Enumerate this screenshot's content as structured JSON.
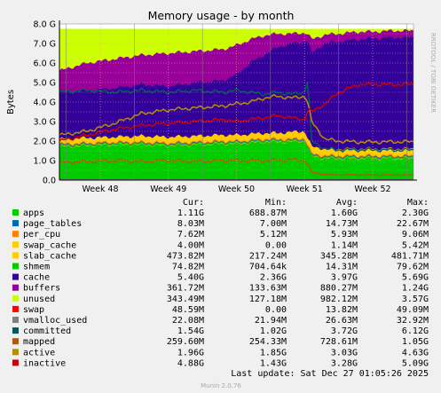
{
  "chart_data": {
    "type": "area",
    "title": "Memory usage - by month",
    "ylabel": "Bytes",
    "side_label": "RRDTOOL / TOBI OETIKER",
    "ylim": [
      0,
      8.0
    ],
    "y_ticks": [
      "0.0",
      "1.0 G",
      "2.0 G",
      "3.0 G",
      "4.0 G",
      "5.0 G",
      "6.0 G",
      "7.0 G",
      "8.0 G"
    ],
    "x_ticks": [
      "Week 48",
      "Week 49",
      "Week 50",
      "Week 51",
      "Week 52"
    ],
    "grid": true,
    "legend_position": "bottom",
    "columns": [
      "Cur:",
      "Min:",
      "Avg:",
      "Max:"
    ],
    "series": [
      {
        "name": "apps",
        "color": "#00cc00",
        "cur": "1.11G",
        "min": "688.87M",
        "avg": "1.60G",
        "max": "2.30G"
      },
      {
        "name": "page_tables",
        "color": "#0066b3",
        "cur": "8.03M",
        "min": "7.00M",
        "avg": "14.73M",
        "max": "22.67M"
      },
      {
        "name": "per_cpu",
        "color": "#ff8000",
        "cur": "7.62M",
        "min": "5.12M",
        "avg": "5.93M",
        "max": "9.06M"
      },
      {
        "name": "swap_cache",
        "color": "#ffcc00",
        "cur": "4.00M",
        "min": "0.00",
        "avg": "1.14M",
        "max": "5.42M"
      },
      {
        "name": "slab_cache",
        "color": "#ffcc00",
        "cur": "473.82M",
        "min": "217.24M",
        "avg": "345.28M",
        "max": "481.71M"
      },
      {
        "name": "shmem",
        "color": "#00cc00",
        "cur": "74.82M",
        "min": "704.64k",
        "avg": "14.31M",
        "max": "79.62M"
      },
      {
        "name": "cache",
        "color": "#330099",
        "cur": "5.40G",
        "min": "2.36G",
        "avg": "3.97G",
        "max": "5.69G"
      },
      {
        "name": "buffers",
        "color": "#990099",
        "cur": "361.72M",
        "min": "133.63M",
        "avg": "880.27M",
        "max": "1.24G"
      },
      {
        "name": "unused",
        "color": "#ccff00",
        "cur": "343.49M",
        "min": "127.18M",
        "avg": "982.12M",
        "max": "3.57G"
      },
      {
        "name": "swap",
        "color": "#ff0000",
        "cur": "48.59M",
        "min": "0.00",
        "avg": "13.82M",
        "max": "49.09M"
      },
      {
        "name": "vmalloc_used",
        "color": "#808080",
        "cur": "22.08M",
        "min": "21.94M",
        "avg": "26.63M",
        "max": "32.92M"
      },
      {
        "name": "committed",
        "color": "#005a5a",
        "cur": "1.54G",
        "min": "1.02G",
        "avg": "3.72G",
        "max": "6.12G"
      },
      {
        "name": "mapped",
        "color": "#b35a00",
        "cur": "259.60M",
        "min": "254.33M",
        "avg": "728.61M",
        "max": "1.05G"
      },
      {
        "name": "active",
        "color": "#b38f00",
        "cur": "1.96G",
        "min": "1.85G",
        "avg": "3.03G",
        "max": "4.63G"
      },
      {
        "name": "inactive",
        "color": "#cc0000",
        "cur": "4.88G",
        "min": "1.43G",
        "avg": "3.28G",
        "max": "5.09G"
      }
    ],
    "approx_profiles": {
      "x_weeks": [
        47.4,
        47.8,
        48.2,
        48.6,
        49.0,
        49.4,
        49.8,
        50.0,
        50.2,
        50.4,
        50.6,
        50.8,
        51.0,
        51.05,
        51.1,
        51.3,
        51.5,
        51.8,
        52.0,
        52.3,
        52.6
      ],
      "stack_top": [
        7.75,
        7.75,
        7.75,
        7.75,
        7.75,
        7.75,
        7.75,
        7.75,
        7.75,
        7.75,
        7.75,
        7.75,
        7.75,
        7.75,
        7.75,
        7.75,
        7.75,
        7.75,
        7.75,
        7.75,
        7.75
      ],
      "apps": [
        1.7,
        1.75,
        1.8,
        1.8,
        1.75,
        1.8,
        1.85,
        1.85,
        1.9,
        1.95,
        1.95,
        1.95,
        2.0,
        1.6,
        1.2,
        1.1,
        1.1,
        1.1,
        1.1,
        1.1,
        1.1
      ],
      "slab_top": [
        2.1,
        2.15,
        2.2,
        2.25,
        2.2,
        2.25,
        2.3,
        2.3,
        2.35,
        2.4,
        2.4,
        2.45,
        2.5,
        2.1,
        1.7,
        1.6,
        1.6,
        1.6,
        1.6,
        1.6,
        1.6
      ],
      "cache_top": [
        4.5,
        4.6,
        4.7,
        4.9,
        4.8,
        5.0,
        5.1,
        5.4,
        6.0,
        6.4,
        6.8,
        7.0,
        7.1,
        7.2,
        6.5,
        7.0,
        7.1,
        7.2,
        7.25,
        7.3,
        7.3
      ],
      "buffers_top": [
        5.6,
        6.0,
        6.2,
        6.4,
        6.5,
        6.6,
        6.7,
        6.9,
        7.2,
        7.4,
        7.5,
        7.5,
        7.55,
        7.5,
        7.2,
        7.45,
        7.5,
        7.6,
        7.6,
        7.65,
        7.65
      ],
      "inactive": [
        2.0,
        2.3,
        2.6,
        2.8,
        2.9,
        3.0,
        3.1,
        3.0,
        3.1,
        3.2,
        3.3,
        3.2,
        3.1,
        3.6,
        3.5,
        3.9,
        4.5,
        4.9,
        4.9,
        4.9,
        4.9
      ],
      "active": [
        2.3,
        2.5,
        2.9,
        3.4,
        3.6,
        3.7,
        3.8,
        3.9,
        4.0,
        4.2,
        4.3,
        4.2,
        4.3,
        4.0,
        3.0,
        2.1,
        2.0,
        1.95,
        1.95,
        1.96,
        1.96
      ],
      "committed": [
        4.5,
        4.6,
        4.5,
        4.6,
        4.5,
        4.6,
        4.5,
        4.6,
        4.5,
        4.4,
        4.5,
        4.4,
        4.5,
        5.2,
        2.0,
        1.6,
        1.55,
        1.55,
        1.55,
        1.54,
        1.54
      ],
      "mapped": [
        0.9,
        0.95,
        1.0,
        0.95,
        1.0,
        0.95,
        1.0,
        1.0,
        1.0,
        1.0,
        1.0,
        1.05,
        1.0,
        0.8,
        0.4,
        0.28,
        0.27,
        0.26,
        0.26,
        0.26,
        0.26
      ]
    }
  },
  "footer": {
    "last_update": "Last update: Sat Dec 27 01:05:26 2025",
    "version": "Munin 2.0.76"
  }
}
